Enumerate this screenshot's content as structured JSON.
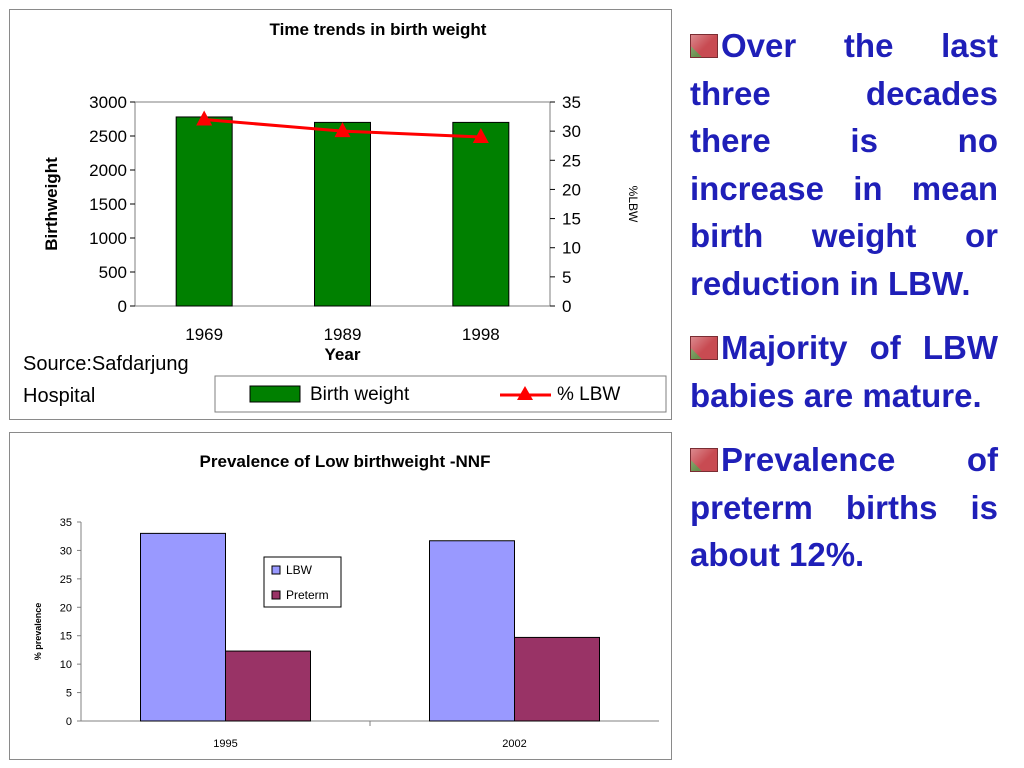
{
  "colors": {
    "bar_green": "#008000",
    "line_red": "#ff0000",
    "lbw_bar": "#9999ff",
    "preterm_bar": "#993366",
    "bullet_text": "#1f1fb8"
  },
  "source_note": "Source:Safdarjung Hospital",
  "bullets": [
    {
      "icon": "flower-bullet-icon",
      "text": "Over the last three decades there is no increase in mean birth weight or reduction in LBW."
    },
    {
      "icon": "flower-bullet-icon",
      "text": "Majority of LBW babies are mature."
    },
    {
      "icon": "flower-bullet-icon",
      "text": "Prevalence of preterm births is about 12%."
    }
  ],
  "chart_data": [
    {
      "type": "bar",
      "title": "Time trends in birth weight",
      "xlabel": "Year",
      "ylabel": "Birthweight",
      "y2label": "%LBW",
      "categories": [
        "1969",
        "1989",
        "1998"
      ],
      "ylim": [
        0,
        3000
      ],
      "yticks": [
        "0",
        "500",
        "1000",
        "1500",
        "2000",
        "2500",
        "3000"
      ],
      "y2lim": [
        0,
        35
      ],
      "y2ticks": [
        "0",
        "5",
        "10",
        "15",
        "20",
        "25",
        "30",
        "35"
      ],
      "grid": false,
      "legend_position": "bottom",
      "series": [
        {
          "name": "Birth weight",
          "type": "bar",
          "axis": "left",
          "values": [
            2780,
            2700,
            2700
          ]
        },
        {
          "name": "% LBW",
          "type": "line",
          "axis": "right",
          "marker": "triangle",
          "values": [
            32,
            30,
            29
          ]
        }
      ]
    },
    {
      "type": "bar",
      "title": "Prevalence of Low birthweight -NNF",
      "xlabel": "",
      "ylabel": "% prevalence",
      "categories": [
        "1995",
        "2002"
      ],
      "ylim": [
        0,
        35
      ],
      "yticks": [
        "0",
        "5",
        "10",
        "15",
        "20",
        "25",
        "30",
        "35"
      ],
      "grid": false,
      "legend_position": "right",
      "series": [
        {
          "name": "LBW",
          "values": [
            33,
            31.7
          ]
        },
        {
          "name": "Preterm",
          "values": [
            12.3,
            14.7
          ]
        }
      ]
    }
  ]
}
